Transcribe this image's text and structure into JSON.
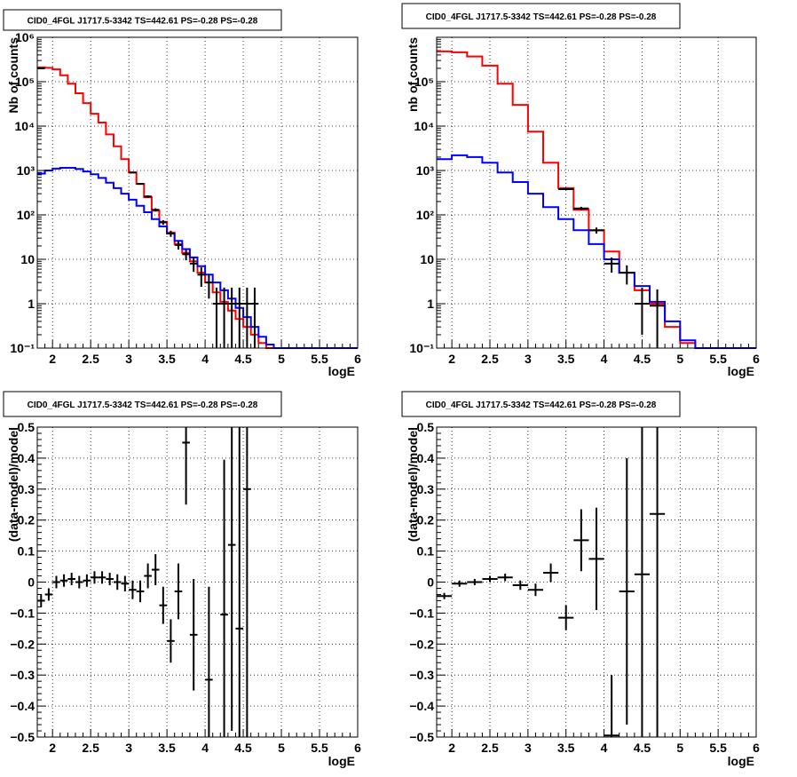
{
  "chart_data": [
    {
      "panel": "top-left",
      "type": "line",
      "title": "CID0_4FGL J1717.5-3342 TS=442.61 PS=-0.28 PS=-0.28",
      "xlabel": "logE",
      "ylabel": "Nb of counts",
      "xlim": [
        1.8,
        6.0
      ],
      "ylim": [
        0.1,
        1000000
      ],
      "yscale": "log",
      "grid": true,
      "x_ticks": [
        2,
        2.5,
        3,
        3.5,
        4,
        4.5,
        5,
        5.5,
        6
      ],
      "x_tick_labels": [
        "2",
        "2.5",
        "3",
        "3.5",
        "4",
        "4.5",
        "5",
        "5.5",
        "6"
      ],
      "y_ticks": [
        0.1,
        1,
        10,
        100,
        1000,
        10000,
        100000,
        1000000
      ],
      "y_tick_labels": [
        "10^-1",
        "1",
        "10",
        "10^2",
        "10^3",
        "10^4",
        "10^5",
        "10^6"
      ],
      "series": [
        {
          "color": "#ff0000",
          "style": "step",
          "bin_width": 0.1,
          "x": [
            1.8,
            1.9,
            2.0,
            2.1,
            2.2,
            2.3,
            2.4,
            2.5,
            2.6,
            2.7,
            2.8,
            2.9,
            3.0,
            3.1,
            3.2,
            3.3,
            3.4,
            3.5,
            3.6,
            3.7,
            3.8,
            3.9,
            4.0,
            4.1,
            4.2,
            4.3,
            4.4,
            4.5,
            4.6,
            4.7,
            4.8,
            4.9,
            5.0,
            5.1,
            5.2,
            5.3,
            5.4,
            5.5,
            5.6,
            5.7,
            5.8,
            5.9
          ],
          "values": [
            210000,
            205000,
            190000,
            140000,
            90000,
            55000,
            33000,
            19000,
            12000,
            6500,
            3500,
            1800,
            900,
            500,
            250,
            125,
            70,
            40,
            22,
            14,
            9,
            5,
            3,
            1.8,
            1.1,
            0.7,
            0.45,
            0.3,
            0.2,
            0.13,
            0.1,
            0.1,
            0.1,
            0.1,
            0.1,
            0.1,
            0.1,
            0.1,
            0.1,
            0.1,
            0.1,
            0.1
          ]
        },
        {
          "color": "#0000ff",
          "style": "step",
          "bin_width": 0.1,
          "x": [
            1.8,
            1.9,
            2.0,
            2.1,
            2.2,
            2.3,
            2.4,
            2.5,
            2.6,
            2.7,
            2.8,
            2.9,
            3.0,
            3.1,
            3.2,
            3.3,
            3.4,
            3.5,
            3.6,
            3.7,
            3.8,
            3.9,
            4.0,
            4.1,
            4.2,
            4.3,
            4.4,
            4.5,
            4.6,
            4.7,
            4.8,
            4.9,
            5.0,
            5.1,
            5.2,
            5.3,
            5.4,
            5.5,
            5.6,
            5.7,
            5.8,
            5.9
          ],
          "values": [
            850,
            1000,
            1100,
            1150,
            1150,
            1080,
            950,
            820,
            680,
            530,
            400,
            300,
            220,
            160,
            115,
            80,
            55,
            38,
            26,
            17,
            11,
            7,
            4.5,
            3,
            2,
            1.3,
            0.8,
            0.5,
            0.3,
            0.18,
            0.12,
            0.1,
            0.1,
            0.1,
            0.1,
            0.1,
            0.1,
            0.1,
            0.1,
            0.1,
            0.1,
            0.1
          ]
        },
        {
          "color": "#000000",
          "style": "errorbar",
          "x_half_width": 0.05,
          "x": [
            1.85,
            3.05,
            3.15,
            3.25,
            3.35,
            3.45,
            3.55,
            3.65,
            3.75,
            3.85,
            3.95,
            4.05,
            4.15,
            4.25,
            4.35,
            4.45,
            4.55,
            4.65
          ],
          "values": [
            200000,
            900,
            500,
            260,
            130,
            68,
            38,
            21,
            13,
            8,
            4.5,
            3,
            1,
            1,
            1,
            1,
            1,
            1
          ],
          "err_low": [
            10000,
            30,
            22,
            16,
            11,
            8,
            6,
            4.5,
            3.5,
            2.8,
            2.1,
            1.7,
            0.9,
            0.9,
            0.9,
            0.9,
            0.9,
            0.9
          ],
          "err_high": [
            10000,
            30,
            22,
            16,
            11,
            8,
            6,
            4.5,
            3.5,
            2.8,
            2.1,
            1.7,
            1.3,
            1.3,
            1.3,
            1.3,
            1.3,
            1.3
          ]
        }
      ]
    },
    {
      "panel": "top-right",
      "type": "line",
      "title": "CID0_4FGL J1717.5-3342 TS=442.61 PS=-0.28 PS=-0.28",
      "xlabel": "logE",
      "ylabel": "nb of counts",
      "xlim": [
        1.8,
        6.0
      ],
      "ylim": [
        0.1,
        1000000
      ],
      "yscale": "log",
      "grid": true,
      "x_ticks": [
        2,
        2.5,
        3,
        3.5,
        4,
        4.5,
        5,
        5.5,
        6
      ],
      "x_tick_labels": [
        "2",
        "2.5",
        "3",
        "3.5",
        "4",
        "4.5",
        "5",
        "5.5",
        "6"
      ],
      "y_ticks": [
        0.1,
        1,
        10,
        100,
        1000,
        10000,
        100000
      ],
      "y_tick_labels": [
        "10^-1",
        "1",
        "10",
        "10^2",
        "10^3",
        "10^4",
        "10^5"
      ],
      "series": [
        {
          "color": "#ff0000",
          "style": "step",
          "bin_width": 0.2,
          "x": [
            1.8,
            2.0,
            2.2,
            2.4,
            2.6,
            2.8,
            3.0,
            3.2,
            3.4,
            3.6,
            3.8,
            4.0,
            4.2,
            4.4,
            4.6,
            4.8,
            5.0,
            5.2,
            5.4,
            5.6,
            5.8
          ],
          "values": [
            480000,
            460000,
            370000,
            230000,
            90000,
            30000,
            7500,
            1500,
            400,
            130,
            45,
            15,
            5,
            2,
            1,
            0.3,
            0.13,
            0.1,
            0.1,
            0.1,
            0.1
          ]
        },
        {
          "color": "#0000ff",
          "style": "step",
          "bin_width": 0.2,
          "x": [
            1.8,
            2.0,
            2.2,
            2.4,
            2.6,
            2.8,
            3.0,
            3.2,
            3.4,
            3.6,
            3.8,
            4.0,
            4.2,
            4.4,
            4.6,
            4.8,
            5.0,
            5.2,
            5.4,
            5.6,
            5.8
          ],
          "values": [
            1800,
            2200,
            2000,
            1500,
            900,
            550,
            300,
            150,
            80,
            45,
            22,
            10,
            5,
            2.5,
            1.1,
            0.4,
            0.15,
            0.1,
            0.1,
            0.1,
            0.1
          ]
        },
        {
          "color": "#000000",
          "style": "errorbar",
          "x_half_width": 0.1,
          "x": [
            3.5,
            3.7,
            3.9,
            4.1,
            4.3,
            4.5,
            4.7
          ],
          "values": [
            380,
            140,
            45,
            8,
            5,
            1,
            0.9
          ],
          "err_low": [
            20,
            12,
            7,
            3,
            2.3,
            0.8,
            0.8
          ],
          "err_high": [
            20,
            12,
            7,
            3,
            2.3,
            1.3,
            1.2
          ]
        }
      ]
    },
    {
      "panel": "bottom-left",
      "type": "scatter",
      "title": "CID0_4FGL J1717.5-3342 TS=442.61 PS=-0.28 PS=-0.28",
      "xlabel": "logE",
      "ylabel": "(data-model)/model",
      "xlim": [
        1.8,
        6.0
      ],
      "ylim": [
        -0.5,
        0.5
      ],
      "grid": true,
      "x_ticks": [
        2,
        2.5,
        3,
        3.5,
        4,
        4.5,
        5,
        5.5,
        6
      ],
      "x_tick_labels": [
        "2",
        "2.5",
        "3",
        "3.5",
        "4",
        "4.5",
        "5",
        "5.5",
        "6"
      ],
      "y_ticks": [
        -0.5,
        -0.4,
        -0.3,
        -0.2,
        -0.1,
        0,
        0.1,
        0.2,
        0.3,
        0.4,
        0.5
      ],
      "y_tick_labels": [
        "−0.5",
        "−0.4",
        "−0.3",
        "−0.2",
        "−0.1",
        "0",
        "0.1",
        "0.2",
        "0.3",
        "0.4",
        "0.5"
      ],
      "series": [
        {
          "color": "#000000",
          "style": "errorbar",
          "x_half_width": 0.05,
          "x": [
            1.85,
            1.95,
            2.05,
            2.15,
            2.25,
            2.35,
            2.45,
            2.55,
            2.65,
            2.75,
            2.85,
            2.95,
            3.05,
            3.15,
            3.25,
            3.35,
            3.45,
            3.55,
            3.65,
            3.75,
            3.85,
            4.05,
            4.25,
            4.35,
            4.45,
            4.55
          ],
          "values": [
            -0.06,
            -0.04,
            0.0,
            0.005,
            0.01,
            0.0,
            0.005,
            0.015,
            0.015,
            0.01,
            0.0,
            -0.005,
            -0.025,
            -0.03,
            0.02,
            0.04,
            -0.075,
            -0.19,
            -0.03,
            0.45,
            -0.17,
            -0.315,
            -0.105,
            0.12,
            -0.15,
            0.3
          ],
          "err": [
            0.02,
            0.02,
            0.02,
            0.02,
            0.02,
            0.02,
            0.02,
            0.02,
            0.02,
            0.02,
            0.025,
            0.025,
            0.03,
            0.035,
            0.04,
            0.05,
            0.06,
            0.07,
            0.09,
            0.2,
            0.18,
            0.3,
            0.5,
            0.6,
            0.65,
            0.8
          ]
        }
      ]
    },
    {
      "panel": "bottom-right",
      "type": "scatter",
      "title": "CID0_4FGL J1717.5-3342 TS=442.61 PS=-0.28 PS=-0.28",
      "xlabel": "logE",
      "ylabel": "(data-model)/model",
      "xlim": [
        1.8,
        6.0
      ],
      "ylim": [
        -0.5,
        0.5
      ],
      "grid": true,
      "x_ticks": [
        2,
        2.5,
        3,
        3.5,
        4,
        4.5,
        5,
        5.5,
        6
      ],
      "x_tick_labels": [
        "2",
        "2.5",
        "3",
        "3.5",
        "4",
        "4.5",
        "5",
        "5.5",
        "6"
      ],
      "y_ticks": [
        -0.5,
        -0.4,
        -0.3,
        -0.2,
        -0.1,
        0,
        0.1,
        0.2,
        0.3,
        0.4,
        0.5
      ],
      "y_tick_labels": [
        "−0.5",
        "−0.4",
        "−0.3",
        "−0.2",
        "−0.1",
        "0",
        "0.1",
        "0.2",
        "0.3",
        "0.4",
        "0.5"
      ],
      "series": [
        {
          "color": "#000000",
          "style": "errorbar",
          "x_half_width": 0.1,
          "x": [
            1.9,
            2.1,
            2.3,
            2.5,
            2.7,
            2.9,
            3.1,
            3.3,
            3.5,
            3.7,
            3.9,
            4.1,
            4.3,
            4.5,
            4.7
          ],
          "values": [
            -0.045,
            -0.005,
            0.0,
            0.01,
            0.015,
            -0.01,
            -0.025,
            0.03,
            -0.115,
            0.135,
            0.075,
            -0.495,
            -0.03,
            0.025,
            0.22
          ],
          "err": [
            0.01,
            0.01,
            0.01,
            0.01,
            0.012,
            0.015,
            0.02,
            0.03,
            0.04,
            0.1,
            0.165,
            0.195,
            0.43,
            0.65,
            0.75
          ]
        }
      ]
    }
  ]
}
